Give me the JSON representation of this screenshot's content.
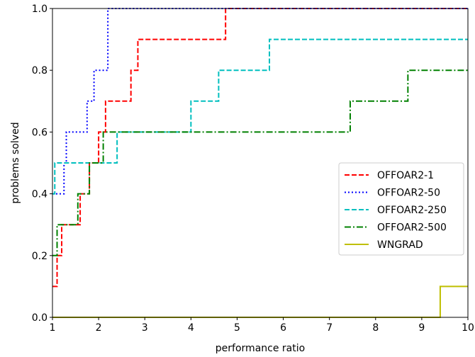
{
  "chart_data": {
    "type": "line",
    "step": true,
    "xlabel": "performance ratio",
    "ylabel": "problems solved",
    "xlim": [
      1,
      10
    ],
    "ylim": [
      0,
      1
    ],
    "xticks": [
      1,
      2,
      3,
      4,
      5,
      6,
      7,
      8,
      9,
      10
    ],
    "yticks": [
      0.0,
      0.2,
      0.4,
      0.6,
      0.8,
      1.0
    ],
    "grid": false,
    "legend_position": "center-right",
    "series": [
      {
        "name": "OFFOAR2-1",
        "color": "#ff0000",
        "dash": "dashed",
        "points": [
          [
            1.0,
            0.1
          ],
          [
            1.1,
            0.2
          ],
          [
            1.2,
            0.3
          ],
          [
            1.6,
            0.4
          ],
          [
            1.8,
            0.5
          ],
          [
            2.0,
            0.6
          ],
          [
            2.15,
            0.7
          ],
          [
            2.7,
            0.8
          ],
          [
            2.85,
            0.9
          ],
          [
            4.75,
            1.0
          ],
          [
            10.0,
            1.0
          ]
        ]
      },
      {
        "name": "OFFOAR2-50",
        "color": "#0000ff",
        "dash": "dotted",
        "points": [
          [
            1.0,
            0.4
          ],
          [
            1.25,
            0.5
          ],
          [
            1.3,
            0.6
          ],
          [
            1.75,
            0.7
          ],
          [
            1.9,
            0.8
          ],
          [
            2.2,
            1.0
          ],
          [
            10.0,
            1.0
          ]
        ]
      },
      {
        "name": "OFFOAR2-250",
        "color": "#00bfbf",
        "dash": "dashed",
        "points": [
          [
            1.0,
            0.4
          ],
          [
            1.05,
            0.5
          ],
          [
            2.4,
            0.6
          ],
          [
            4.0,
            0.7
          ],
          [
            4.6,
            0.8
          ],
          [
            5.7,
            0.9
          ],
          [
            10.0,
            0.9
          ]
        ]
      },
      {
        "name": "OFFOAR2-500",
        "color": "#008000",
        "dash": "dashdot",
        "points": [
          [
            1.0,
            0.2
          ],
          [
            1.1,
            0.3
          ],
          [
            1.55,
            0.4
          ],
          [
            1.8,
            0.5
          ],
          [
            2.1,
            0.6
          ],
          [
            7.45,
            0.7
          ],
          [
            8.7,
            0.8
          ],
          [
            10.0,
            0.8
          ]
        ]
      },
      {
        "name": "WNGRAD",
        "color": "#bfbf00",
        "dash": "solid",
        "points": [
          [
            1.0,
            0.0
          ],
          [
            9.4,
            0.1
          ],
          [
            10.0,
            0.1
          ]
        ]
      }
    ]
  }
}
